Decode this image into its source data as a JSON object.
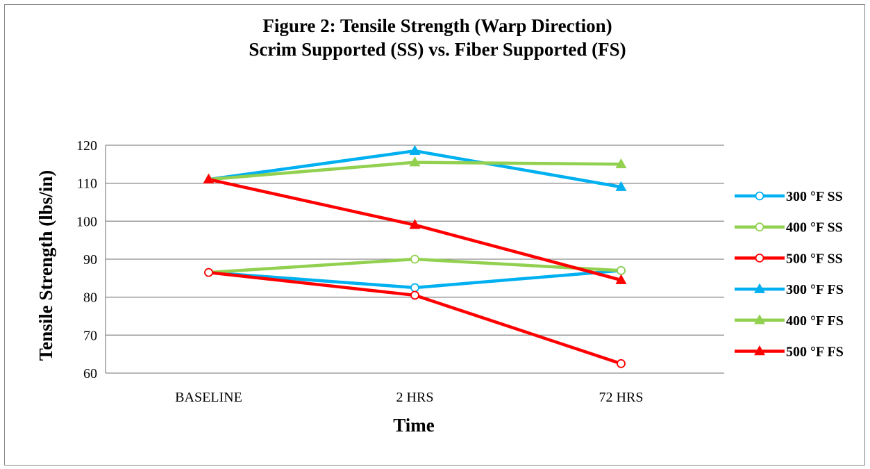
{
  "chart_data": {
    "type": "line",
    "title": "Figure 2:  Tensile Strength (Warp Direction)",
    "subtitle": "Scrim Supported (SS) vs. Fiber Supported (FS)",
    "xlabel": "Time",
    "ylabel": "Tensile Strength (lbs/in)",
    "categories": [
      "BASELINE",
      "2 HRS",
      "72 HRS"
    ],
    "ylim": [
      60,
      120
    ],
    "yticks": [
      60,
      70,
      80,
      90,
      100,
      110,
      120
    ],
    "grid": true,
    "legend_position": "right",
    "series": [
      {
        "name": "300 °F SS",
        "values": [
          86.5,
          82.5,
          87
        ],
        "color": "#00B0F0",
        "marker": "circle-open"
      },
      {
        "name": "400 °F SS",
        "values": [
          86.5,
          90,
          87
        ],
        "color": "#92D050",
        "marker": "circle-open"
      },
      {
        "name": "500 °F SS",
        "values": [
          86.5,
          80.5,
          62.5
        ],
        "color": "#FF0000",
        "marker": "circle-open"
      },
      {
        "name": "300 °F FS",
        "values": [
          111,
          118.5,
          109
        ],
        "color": "#00B0F0",
        "marker": "triangle"
      },
      {
        "name": "400 °F FS",
        "values": [
          111,
          115.5,
          115
        ],
        "color": "#92D050",
        "marker": "triangle"
      },
      {
        "name": "500 °F FS",
        "values": [
          111,
          99,
          84.5
        ],
        "color": "#FF0000",
        "marker": "triangle"
      }
    ]
  }
}
